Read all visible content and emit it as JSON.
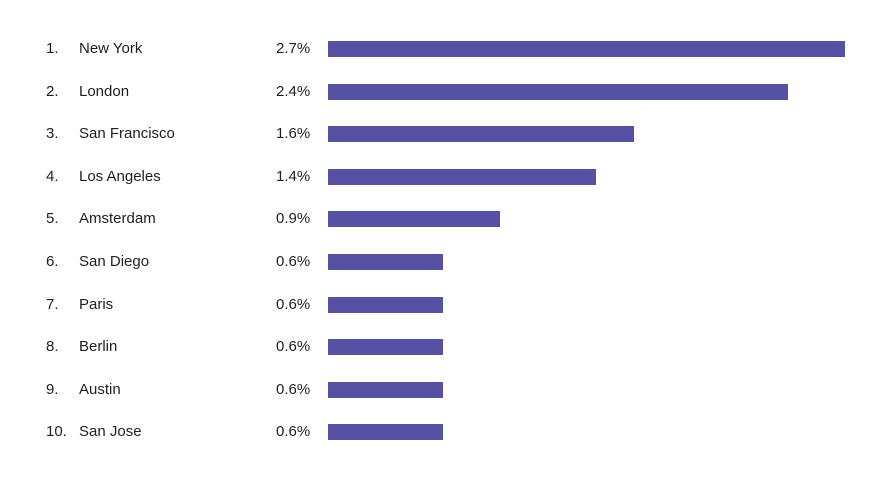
{
  "chart_data": {
    "type": "bar",
    "orientation": "horizontal",
    "ranks": [
      "1.",
      "2.",
      "3.",
      "4.",
      "5.",
      "6.",
      "7.",
      "8.",
      "9.",
      "10."
    ],
    "categories": [
      "New York",
      "London",
      "San Francisco",
      "Los Angeles",
      "Amsterdam",
      "San Diego",
      "Paris",
      "Berlin",
      "Austin",
      "San Jose"
    ],
    "values": [
      2.7,
      2.4,
      1.6,
      1.4,
      0.9,
      0.6,
      0.6,
      0.6,
      0.6,
      0.6
    ],
    "labels": [
      "2.7%",
      "2.4%",
      "1.6%",
      "1.4%",
      "0.9%",
      "0.6%",
      "0.6%",
      "0.6%",
      "0.6%",
      "0.6%"
    ],
    "unit": "%",
    "grid": false,
    "legend": "none",
    "bar_color": "#5552a3"
  }
}
